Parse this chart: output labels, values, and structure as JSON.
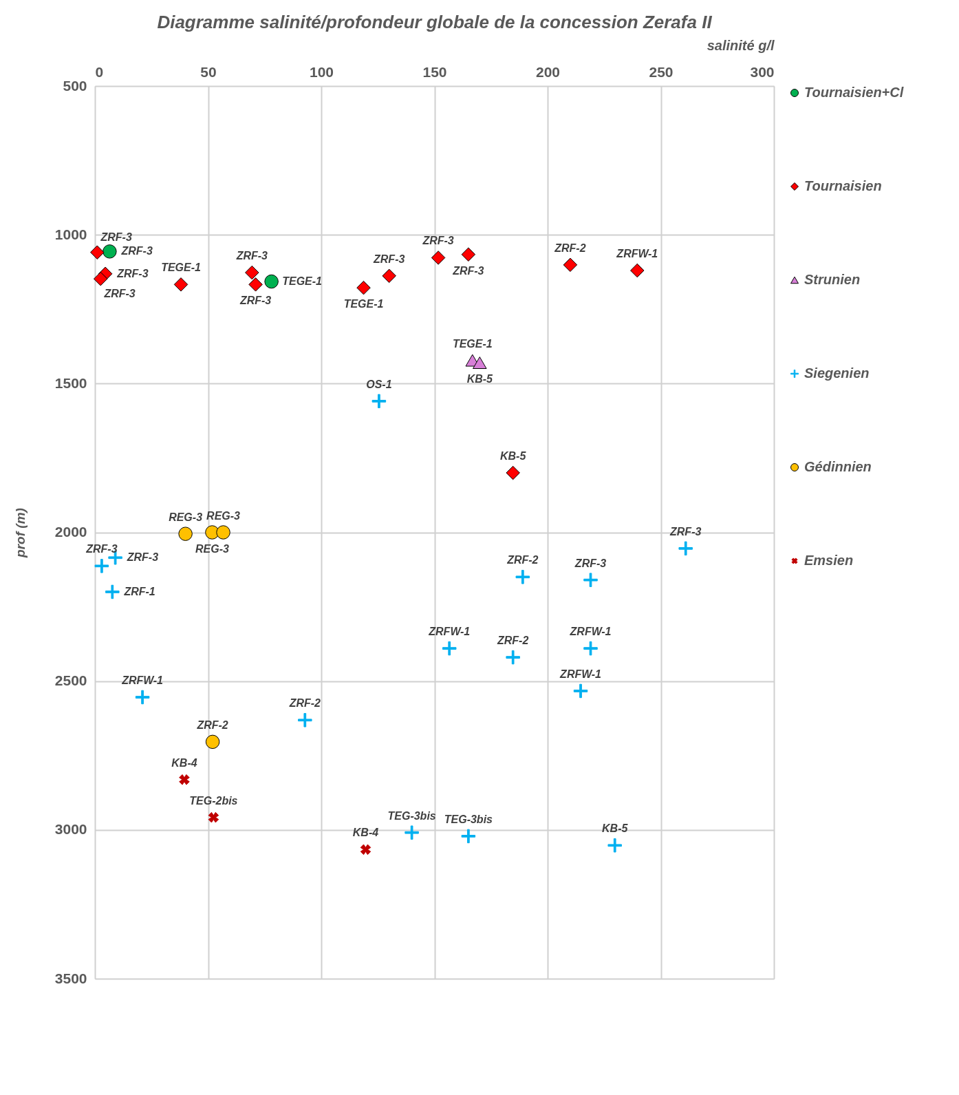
{
  "chart_data": {
    "type": "scatter",
    "title": "Diagramme  salinité/profondeur  globale  de la  concession  Zerafa II",
    "xlabel": "salinité g/l",
    "ylabel": "prof (m)",
    "xlim": [
      0,
      300
    ],
    "xticks": [
      0,
      50,
      100,
      150,
      200,
      250,
      300
    ],
    "ylim": [
      3500,
      500
    ],
    "yticks": [
      500,
      1000,
      1500,
      2000,
      2500,
      3000,
      3500
    ],
    "grid": true,
    "legend": "right",
    "series": [
      {
        "name": "Tournaisien+Cl",
        "color": "#00b050",
        "marker": "circle",
        "x": [
          6.5,
          78
        ],
        "values": [
          1056,
          1157
        ]
      },
      {
        "name": "Tournaisien",
        "color": "#ff0000",
        "marker": "diamond",
        "x": [
          1,
          4.6,
          2.5,
          38,
          69.4,
          71,
          118.7,
          130,
          151.7,
          165,
          210,
          239.6,
          184.7
        ],
        "values": [
          1059,
          1131,
          1148,
          1167,
          1127,
          1167,
          1178,
          1138,
          1077,
          1066,
          1101,
          1120,
          1800
        ]
      },
      {
        "name": "Strunien",
        "color": "#d77fd7",
        "marker": "triangle",
        "x": [
          166.8,
          170
        ],
        "values": [
          1422,
          1430
        ]
      },
      {
        "name": "Siegenien",
        "color": "#00b0f0",
        "marker": "plus",
        "x": [
          125.5,
          3,
          9,
          7.7,
          21,
          92.8,
          156.6,
          184.7,
          189,
          219,
          219,
          214.6,
          261,
          140,
          165,
          229.7
        ],
        "values": [
          1559,
          2113,
          2085,
          2200,
          2554,
          2631,
          2390,
          2420,
          2150,
          2160,
          2390,
          2533,
          2054,
          3009,
          3021,
          3052
        ]
      },
      {
        "name": "Gédinnien",
        "color": "#ffc000",
        "marker": "circle",
        "x": [
          40,
          51.8,
          56.7,
          52
        ],
        "values": [
          2005,
          2000,
          2000,
          2704
        ]
      },
      {
        "name": "Emsien",
        "color": "#c00000",
        "marker": "cross",
        "x": [
          39.5,
          52.4,
          119.6
        ],
        "values": [
          2831,
          2958,
          3066
        ]
      }
    ],
    "annotations": [
      {
        "text": "ZRF-3",
        "x": 6.5,
        "y": 1056
      },
      {
        "text": "TEGE-1",
        "x": 78,
        "y": 1157
      },
      {
        "text": "ZRF-3",
        "x": 1,
        "y": 1059
      },
      {
        "text": "ZRF-3",
        "x": 4.6,
        "y": 1131
      },
      {
        "text": "ZRF-3",
        "x": 2.5,
        "y": 1148
      },
      {
        "text": "TEGE-1",
        "x": 38,
        "y": 1167
      },
      {
        "text": "ZRF-3",
        "x": 69.4,
        "y": 1127
      },
      {
        "text": "ZRF-3",
        "x": 71,
        "y": 1167
      },
      {
        "text": "TEGE-1",
        "x": 118.7,
        "y": 1178
      },
      {
        "text": "ZRF-3",
        "x": 130,
        "y": 1138
      },
      {
        "text": "ZRF-3",
        "x": 151.7,
        "y": 1077
      },
      {
        "text": "ZRF-3",
        "x": 165,
        "y": 1066
      },
      {
        "text": "ZRF-2",
        "x": 210,
        "y": 1101
      },
      {
        "text": "ZRFW-1",
        "x": 239.6,
        "y": 1120
      },
      {
        "text": "KB-5",
        "x": 184.7,
        "y": 1800
      },
      {
        "text": "TEGE-1",
        "x": 166.8,
        "y": 1422
      },
      {
        "text": "KB-5",
        "x": 170,
        "y": 1430
      },
      {
        "text": "OS-1",
        "x": 125.5,
        "y": 1559
      },
      {
        "text": "ZRF-3",
        "x": 3,
        "y": 2113
      },
      {
        "text": "ZRF-3",
        "x": 9,
        "y": 2085
      },
      {
        "text": "ZRF-1",
        "x": 7.7,
        "y": 2200
      },
      {
        "text": "ZRFW-1",
        "x": 21,
        "y": 2554
      },
      {
        "text": "ZRF-2",
        "x": 92.8,
        "y": 2631
      },
      {
        "text": "ZRFW-1",
        "x": 156.6,
        "y": 2390
      },
      {
        "text": "ZRF-2",
        "x": 184.7,
        "y": 2420
      },
      {
        "text": "ZRF-2",
        "x": 189,
        "y": 2150
      },
      {
        "text": "ZRF-3",
        "x": 219,
        "y": 2160
      },
      {
        "text": "ZRFW-1",
        "x": 219,
        "y": 2390
      },
      {
        "text": "ZRFW-1",
        "x": 214.6,
        "y": 2533
      },
      {
        "text": "ZRF-3",
        "x": 261,
        "y": 2054
      },
      {
        "text": "TEG-3bis",
        "x": 140,
        "y": 3009
      },
      {
        "text": "TEG-3bis",
        "x": 165,
        "y": 3021
      },
      {
        "text": "KB-5",
        "x": 229.7,
        "y": 3052
      },
      {
        "text": "REG-3",
        "x": 40,
        "y": 2005
      },
      {
        "text": "REG-3",
        "x": 51.8,
        "y": 2000
      },
      {
        "text": "REG-3",
        "x": 56.7,
        "y": 2000
      },
      {
        "text": "ZRF-2",
        "x": 52,
        "y": 2704
      },
      {
        "text": "KB-4",
        "x": 39.5,
        "y": 2831
      },
      {
        "text": "TEG-2bis",
        "x": 52.4,
        "y": 2958
      },
      {
        "text": "KB-4",
        "x": 119.6,
        "y": 3066
      }
    ]
  }
}
